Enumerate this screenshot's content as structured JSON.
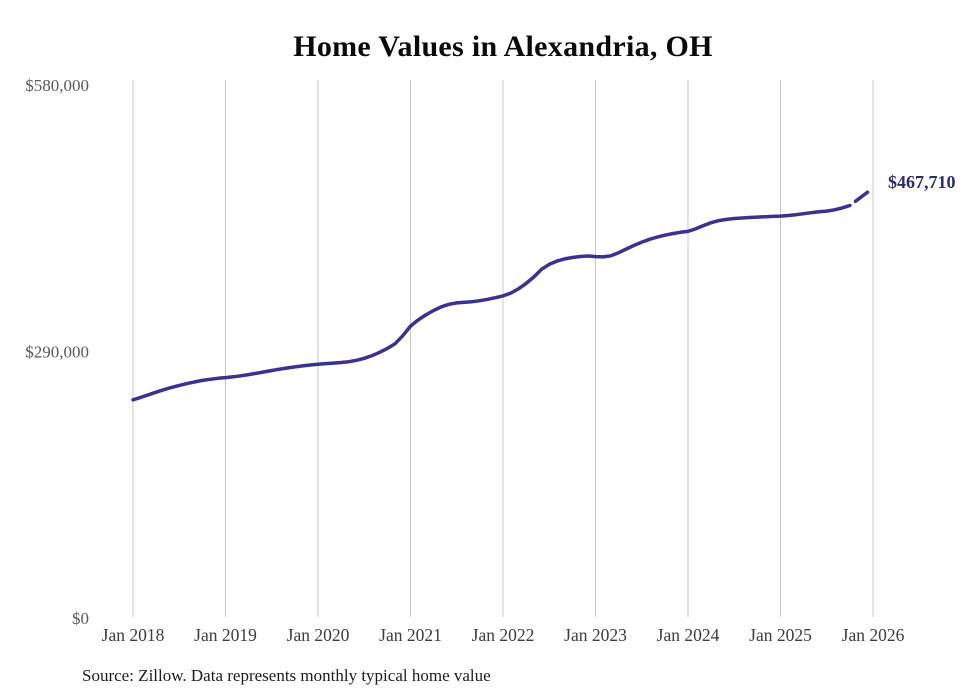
{
  "page": {
    "title": "Home Values in Alexandria, OH",
    "end_label": "$467,710",
    "source_note": "Source: Zillow. Data represents monthly typical home value"
  },
  "colors": {
    "line": "#3a3193",
    "forecast_line": "#3a3193",
    "end_label_text": "#2b2b76",
    "gridline": "#c8c8c8",
    "x_axis_text": "#3d3d3d",
    "y_axis_text": "#595959",
    "title_text": "#0a0a0a",
    "source_text": "#1c1c1c",
    "background": "#ffffff"
  },
  "chart_data": {
    "type": "line",
    "title": "Home Values in Alexandria, OH",
    "unit": "USD",
    "frequency": "monthly",
    "xlabel": "",
    "ylabel": "",
    "ylim": [
      0,
      580000
    ],
    "grid": "vertical-only",
    "legend": "none",
    "x_tick_labels": [
      "Jan 2018",
      "Jan 2019",
      "Jan 2020",
      "Jan 2021",
      "Jan 2022",
      "Jan 2023",
      "Jan 2024",
      "Jan 2025",
      "Jan 2026"
    ],
    "y_ticks": [
      {
        "label": "$0",
        "value": 0
      },
      {
        "label": "$290,000",
        "value": 290000
      },
      {
        "label": "$580,000",
        "value": 580000
      }
    ],
    "series": [
      {
        "name": "Typical home value",
        "style": "solid",
        "start_month": "2018-01",
        "values": [
          237400,
          240100,
          242900,
          245700,
          248400,
          250900,
          253100,
          255100,
          256900,
          258500,
          259800,
          260800,
          261600,
          262500,
          263600,
          264900,
          266300,
          267800,
          269300,
          270700,
          272000,
          273200,
          274300,
          275300,
          276100,
          276800,
          277400,
          278000,
          278900,
          280400,
          282600,
          285500,
          289100,
          293400,
          298500,
          307200,
          317600,
          324400,
          329800,
          334600,
          338600,
          341400,
          342900,
          343500,
          344200,
          345300,
          346800,
          348500,
          350500,
          353600,
          358100,
          364100,
          371100,
          379400,
          384900,
          388400,
          390800,
          392300,
          393400,
          393900,
          393300,
          392900,
          394100,
          397500,
          401500,
          405500,
          409000,
          412100,
          414500,
          416600,
          418300,
          419700,
          420700,
          423500,
          427000,
          430200,
          432400,
          433800,
          434700,
          435300,
          435800,
          436300,
          436700,
          437000,
          437300,
          438000,
          438900,
          440000,
          441000,
          442000,
          442800,
          444200,
          446300,
          448900
        ]
      },
      {
        "name": "Forecast",
        "style": "dashed",
        "start_month": "2025-10",
        "values": [
          448900,
          455200,
          461500,
          467710
        ]
      }
    ],
    "final_annotation": {
      "label": "$467,710",
      "value": 467710,
      "month": "2026-01"
    }
  }
}
